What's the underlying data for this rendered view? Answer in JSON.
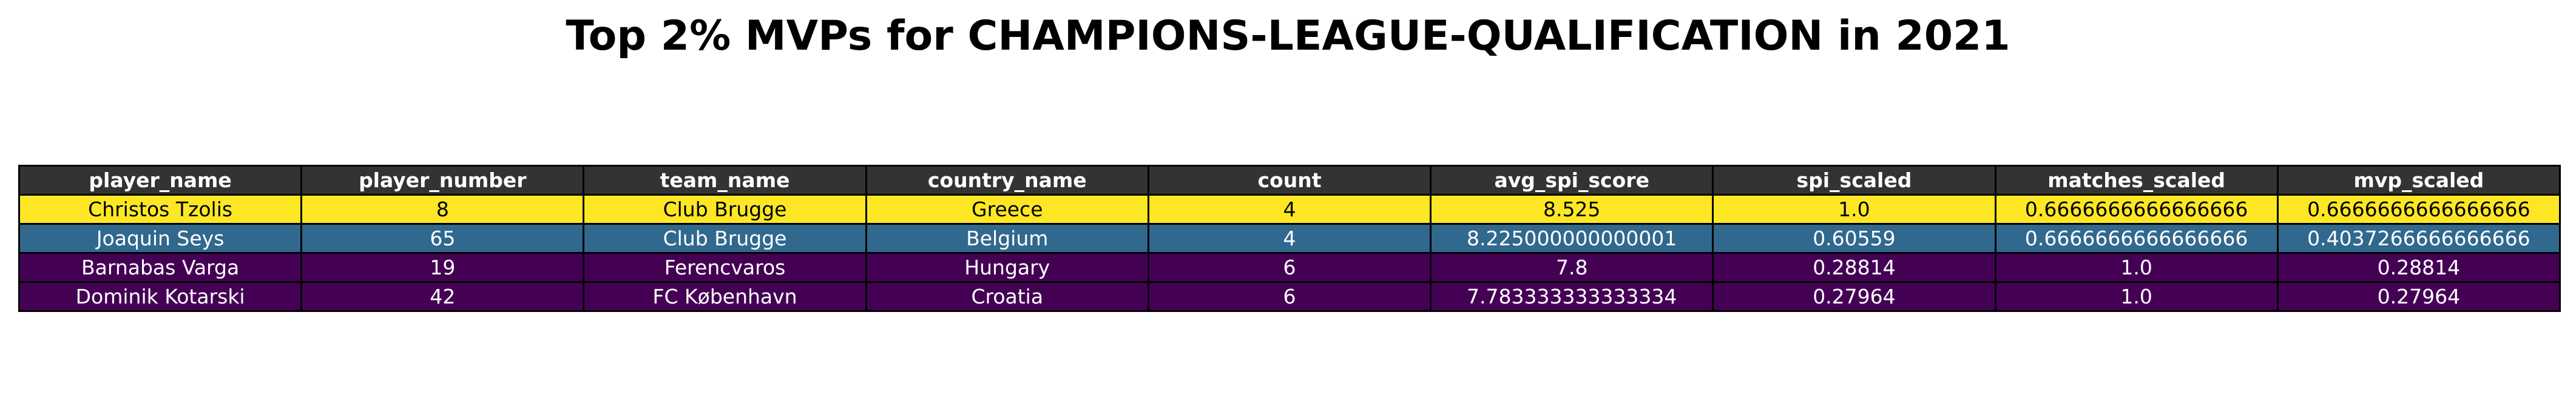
{
  "chart_data": {
    "type": "table",
    "title": "Top 2% MVPs for CHAMPIONS-LEAGUE-QUALIFICATION in 2021",
    "header_color": "#333333",
    "columns": [
      "player_name",
      "player_number",
      "team_name",
      "country_name",
      "count",
      "avg_spi_score",
      "spi_scaled",
      "matches_scaled",
      "mvp_scaled"
    ],
    "rows": [
      {
        "cells": [
          "Christos Tzolis",
          "8",
          "Club Brugge",
          "Greece",
          "4",
          "8.525",
          "1.0",
          "0.6666666666666666",
          "0.6666666666666666"
        ],
        "fill": "#fde725",
        "text_color": "#000000"
      },
      {
        "cells": [
          "Joaquin Seys",
          "65",
          "Club Brugge",
          "Belgium",
          "4",
          "8.225000000000001",
          "0.60559",
          "0.6666666666666666",
          "0.4037266666666666"
        ],
        "fill": "#31688e",
        "text_color": "#ffffff"
      },
      {
        "cells": [
          "Barnabas Varga",
          "19",
          "Ferencvaros",
          "Hungary",
          "6",
          "7.8",
          "0.28814",
          "1.0",
          "0.28814"
        ],
        "fill": "#440154",
        "text_color": "#ffffff"
      },
      {
        "cells": [
          "Dominik Kotarski",
          "42",
          "FC København",
          "Croatia",
          "6",
          "7.783333333333334",
          "0.27964",
          "1.0",
          "0.27964"
        ],
        "fill": "#440154",
        "text_color": "#ffffff"
      }
    ]
  }
}
